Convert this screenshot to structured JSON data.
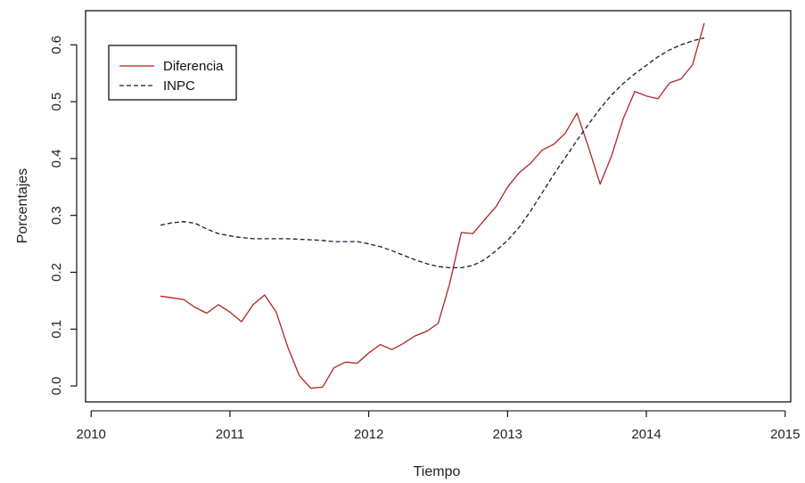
{
  "chart_data": {
    "type": "line",
    "title": "",
    "xlabel": "Tiempo",
    "ylabel": "Porcentajes",
    "xlim": [
      2009.96,
      2015.04
    ],
    "ylim": [
      -0.028,
      0.66
    ],
    "x_ticks": [
      2010,
      2011,
      2012,
      2013,
      2014,
      2015
    ],
    "x_tick_labels": [
      "2010",
      "2011",
      "2012",
      "2013",
      "2014",
      "2015"
    ],
    "y_ticks": [
      0.0,
      0.1,
      0.2,
      0.3,
      0.4,
      0.5,
      0.6
    ],
    "y_tick_labels": [
      "0.0",
      "0.1",
      "0.2",
      "0.3",
      "0.4",
      "0.5",
      "0.6"
    ],
    "grid": false,
    "legend_position": "top-left",
    "series": [
      {
        "name": "Diferencia",
        "color": "#b22222",
        "dash": "solid",
        "x": [
          2010.5,
          2010.583,
          2010.667,
          2010.75,
          2010.833,
          2010.917,
          2011.0,
          2011.083,
          2011.167,
          2011.25,
          2011.333,
          2011.417,
          2011.5,
          2011.583,
          2011.667,
          2011.75,
          2011.833,
          2011.917,
          2012.0,
          2012.083,
          2012.167,
          2012.25,
          2012.333,
          2012.417,
          2012.5,
          2012.583,
          2012.667,
          2012.75,
          2012.833,
          2012.917,
          2013.0,
          2013.083,
          2013.167,
          2013.25,
          2013.333,
          2013.417,
          2013.5,
          2013.583,
          2013.667,
          2013.75,
          2013.833,
          2013.917,
          2014.0,
          2014.083,
          2014.167,
          2014.25,
          2014.333,
          2014.417
        ],
        "y": [
          0.158,
          0.155,
          0.152,
          0.138,
          0.128,
          0.143,
          0.13,
          0.113,
          0.143,
          0.16,
          0.13,
          0.068,
          0.018,
          -0.004,
          -0.002,
          0.032,
          0.042,
          0.04,
          0.058,
          0.073,
          0.064,
          0.075,
          0.088,
          0.096,
          0.11,
          0.18,
          0.27,
          0.268,
          0.292,
          0.315,
          0.35,
          0.375,
          0.392,
          0.415,
          0.425,
          0.445,
          0.48,
          0.42,
          0.355,
          0.405,
          0.47,
          0.518,
          0.51,
          0.505,
          0.533,
          0.54,
          0.565,
          0.638
        ]
      },
      {
        "name": "INPC",
        "color": "#1a1a3a",
        "dash": "dashed",
        "x": [
          2010.5,
          2010.583,
          2010.667,
          2010.75,
          2010.833,
          2010.917,
          2011.0,
          2011.083,
          2011.167,
          2011.25,
          2011.333,
          2011.417,
          2011.5,
          2011.583,
          2011.667,
          2011.75,
          2011.833,
          2011.917,
          2012.0,
          2012.083,
          2012.167,
          2012.25,
          2012.333,
          2012.417,
          2012.5,
          2012.583,
          2012.667,
          2012.75,
          2012.833,
          2012.917,
          2013.0,
          2013.083,
          2013.167,
          2013.25,
          2013.333,
          2013.417,
          2013.5,
          2013.583,
          2013.667,
          2013.75,
          2013.833,
          2013.917,
          2014.0,
          2014.083,
          2014.167,
          2014.25,
          2014.333,
          2014.417
        ],
        "y": [
          0.283,
          0.287,
          0.289,
          0.286,
          0.276,
          0.268,
          0.264,
          0.261,
          0.259,
          0.259,
          0.259,
          0.259,
          0.258,
          0.257,
          0.256,
          0.254,
          0.254,
          0.254,
          0.25,
          0.245,
          0.238,
          0.23,
          0.222,
          0.215,
          0.21,
          0.208,
          0.208,
          0.212,
          0.222,
          0.238,
          0.256,
          0.279,
          0.308,
          0.34,
          0.372,
          0.402,
          0.432,
          0.46,
          0.488,
          0.512,
          0.532,
          0.549,
          0.564,
          0.579,
          0.591,
          0.6,
          0.607,
          0.612
        ]
      }
    ]
  }
}
